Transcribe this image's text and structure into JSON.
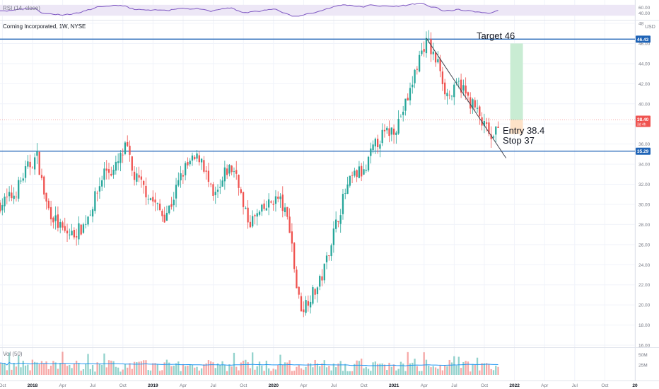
{
  "rsi_pane": {
    "label": "RSI (14, close)",
    "axis_ticks": [
      {
        "v": 60,
        "label": "60.00"
      },
      {
        "v": 40,
        "label": "40.00"
      }
    ],
    "band": [
      30,
      70
    ],
    "colors": {
      "line": "#7e57c2",
      "band": "#ede7f6"
    }
  },
  "main_pane": {
    "title": "Corning Incorporated, 1W, NYSE",
    "currency": "USD",
    "price_ticks": [
      "48",
      "46.00",
      "44.00",
      "42.00",
      "40.00",
      "38.00",
      "36.00",
      "34.00",
      "32.00",
      "30.00",
      "28.00",
      "26.00",
      "24.00",
      "22.00",
      "20.00",
      "18.00",
      "16.00"
    ],
    "price_values": [
      48,
      46,
      44,
      42,
      40,
      38,
      36,
      34,
      32,
      30,
      28,
      26,
      24,
      22,
      20,
      18,
      16
    ],
    "resistance": {
      "value": 46.43,
      "label": "46.43"
    },
    "support": {
      "value": 35.29,
      "label": "35.29"
    },
    "current": {
      "value": 38.4,
      "label": "38.40",
      "countdown": "3d 4h"
    },
    "annotations": {
      "target": "Target 46",
      "entry": "Entry 38.4",
      "stop": "Stop 37"
    },
    "position": {
      "target": 46.0,
      "entry": 38.4,
      "stop": 37.0
    },
    "trendline": {
      "from": {
        "t": 2021.27,
        "p": 46.5
      },
      "to": {
        "t": 2021.93,
        "p": 34.6
      }
    },
    "colors": {
      "up": "#26a69a",
      "down": "#ef5350",
      "level": "#1e63b6",
      "target_zone": "#c9ecd3",
      "stop_zone": "#fde2c8",
      "trend": "#434651"
    }
  },
  "vol_pane": {
    "label": "Vol (50)",
    "axis_ticks": [
      {
        "v": 50,
        "label": "50M"
      },
      {
        "v": 25,
        "label": "25M"
      }
    ],
    "colors": {
      "ma": "#2196f3"
    }
  },
  "time_axis": {
    "ticks": [
      {
        "t": 2017.75,
        "label": "Oct"
      },
      {
        "t": 2018.0,
        "label": "2018"
      },
      {
        "t": 2018.25,
        "label": "Apr"
      },
      {
        "t": 2018.5,
        "label": "Jul"
      },
      {
        "t": 2018.75,
        "label": "Oct"
      },
      {
        "t": 2019.0,
        "label": "2019"
      },
      {
        "t": 2019.25,
        "label": "Apr"
      },
      {
        "t": 2019.5,
        "label": "Jul"
      },
      {
        "t": 2019.75,
        "label": "Oct"
      },
      {
        "t": 2020.0,
        "label": "2020"
      },
      {
        "t": 2020.25,
        "label": "Apr"
      },
      {
        "t": 2020.5,
        "label": "Jul"
      },
      {
        "t": 2020.75,
        "label": "Oct"
      },
      {
        "t": 2021.0,
        "label": "2021"
      },
      {
        "t": 2021.25,
        "label": "Apr"
      },
      {
        "t": 2021.5,
        "label": "Jul"
      },
      {
        "t": 2021.75,
        "label": "Oct"
      },
      {
        "t": 2022.0,
        "label": "2022"
      },
      {
        "t": 2022.25,
        "label": "Apr"
      },
      {
        "t": 2022.5,
        "label": "Jul"
      },
      {
        "t": 2022.75,
        "label": "Oct"
      },
      {
        "t": 2023.0,
        "label": "20"
      }
    ]
  },
  "chart_data": {
    "type": "candlestick",
    "title": "Corning Incorporated, 1W, NYSE",
    "x_range": [
      2017.73,
      2023.0
    ],
    "y_range": [
      16,
      48
    ],
    "y_unit": "USD",
    "close_path": [
      [
        2017.73,
        30.0
      ],
      [
        2017.85,
        31.0
      ],
      [
        2017.95,
        33.5
      ],
      [
        2018.04,
        34.8
      ],
      [
        2018.08,
        32.0
      ],
      [
        2018.12,
        29.8
      ],
      [
        2018.2,
        28.2
      ],
      [
        2018.26,
        27.2
      ],
      [
        2018.33,
        27.0
      ],
      [
        2018.42,
        27.8
      ],
      [
        2018.5,
        30.0
      ],
      [
        2018.56,
        32.0
      ],
      [
        2018.6,
        33.5
      ],
      [
        2018.67,
        33.2
      ],
      [
        2018.73,
        34.6
      ],
      [
        2018.78,
        35.8
      ],
      [
        2018.83,
        33.0
      ],
      [
        2018.9,
        32.0
      ],
      [
        2018.97,
        30.8
      ],
      [
        2019.02,
        30.0
      ],
      [
        2019.09,
        28.8
      ],
      [
        2019.15,
        30.0
      ],
      [
        2019.2,
        31.8
      ],
      [
        2019.26,
        33.5
      ],
      [
        2019.32,
        34.2
      ],
      [
        2019.4,
        34.8
      ],
      [
        2019.45,
        32.5
      ],
      [
        2019.5,
        30.5
      ],
      [
        2019.56,
        31.5
      ],
      [
        2019.6,
        33.2
      ],
      [
        2019.64,
        33.6
      ],
      [
        2019.7,
        33.0
      ],
      [
        2019.75,
        29.5
      ],
      [
        2019.8,
        28.2
      ],
      [
        2019.88,
        29.0
      ],
      [
        2019.95,
        29.8
      ],
      [
        2020.0,
        30.5
      ],
      [
        2020.05,
        30.5
      ],
      [
        2020.1,
        29.0
      ],
      [
        2020.14,
        27.6
      ],
      [
        2020.17,
        24.0
      ],
      [
        2020.2,
        21.0
      ],
      [
        2020.24,
        19.5
      ],
      [
        2020.28,
        20.5
      ],
      [
        2020.33,
        21.2
      ],
      [
        2020.37,
        21.8
      ],
      [
        2020.42,
        23.5
      ],
      [
        2020.47,
        26.0
      ],
      [
        2020.53,
        28.5
      ],
      [
        2020.59,
        31.0
      ],
      [
        2020.65,
        32.6
      ],
      [
        2020.71,
        33.2
      ],
      [
        2020.76,
        33.0
      ],
      [
        2020.8,
        34.8
      ],
      [
        2020.85,
        36.0
      ],
      [
        2020.9,
        36.8
      ],
      [
        2020.96,
        37.2
      ],
      [
        2021.02,
        37.8
      ],
      [
        2021.08,
        39.5
      ],
      [
        2021.13,
        41.0
      ],
      [
        2021.17,
        43.0
      ],
      [
        2021.21,
        44.6
      ],
      [
        2021.25,
        45.8
      ],
      [
        2021.28,
        46.2
      ],
      [
        2021.31,
        45.2
      ],
      [
        2021.34,
        44.4
      ],
      [
        2021.38,
        43.8
      ],
      [
        2021.42,
        41.5
      ],
      [
        2021.45,
        40.8
      ],
      [
        2021.49,
        41.0
      ],
      [
        2021.53,
        42.0
      ],
      [
        2021.57,
        41.6
      ],
      [
        2021.61,
        40.5
      ],
      [
        2021.65,
        40.0
      ],
      [
        2021.69,
        39.2
      ],
      [
        2021.73,
        38.0
      ],
      [
        2021.76,
        37.6
      ],
      [
        2021.79,
        37.2
      ],
      [
        2021.82,
        35.7
      ],
      [
        2021.85,
        37.8
      ],
      [
        2021.87,
        38.4
      ]
    ],
    "series": [
      {
        "name": "RSI (14, close)",
        "range": [
          30,
          70
        ],
        "start": 50
      },
      {
        "name": "Vol (50)",
        "range_millions": [
          8,
          60
        ],
        "ma_millions": 26
      }
    ]
  }
}
